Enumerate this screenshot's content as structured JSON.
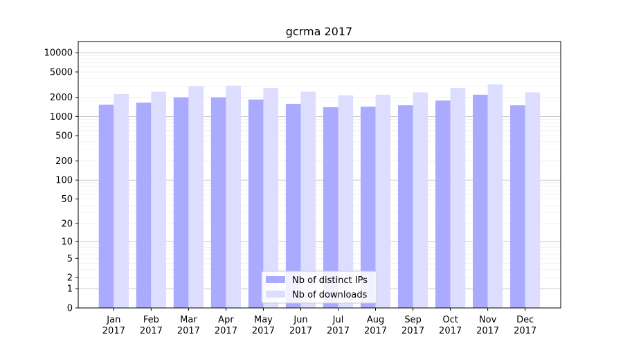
{
  "chart_data": {
    "type": "bar",
    "title": "gcrma 2017",
    "xlabel": "",
    "ylabel": "",
    "y_scale": "symlog",
    "ytick_values": [
      0,
      1,
      2,
      5,
      10,
      20,
      50,
      100,
      200,
      500,
      1000,
      2000,
      5000,
      10000
    ],
    "ytick_labels": [
      "0",
      "1",
      "2",
      "5",
      "10",
      "20",
      "50",
      "100",
      "200",
      "500",
      "1000",
      "2000",
      "5000",
      "10000"
    ],
    "ylim": [
      0,
      15000
    ],
    "categories": [
      "Jan",
      "Feb",
      "Mar",
      "Apr",
      "May",
      "Jun",
      "Jul",
      "Aug",
      "Sep",
      "Oct",
      "Nov",
      "Dec"
    ],
    "year_labels": [
      "2017",
      "2017",
      "2017",
      "2017",
      "2017",
      "2017",
      "2017",
      "2017",
      "2017",
      "2017",
      "2017",
      "2017"
    ],
    "series": [
      {
        "name": "Nb of distinct IPs",
        "color": "#aaaaff",
        "values": [
          1530,
          1650,
          2000,
          2000,
          1850,
          1580,
          1400,
          1430,
          1500,
          1780,
          2200,
          1500
        ]
      },
      {
        "name": "Nb of downloads",
        "color": "#ddddff",
        "values": [
          2250,
          2450,
          3000,
          3050,
          2800,
          2450,
          2150,
          2200,
          2400,
          2800,
          3200,
          2400
        ]
      }
    ],
    "grid": true,
    "legend_position": "bottom-center"
  }
}
